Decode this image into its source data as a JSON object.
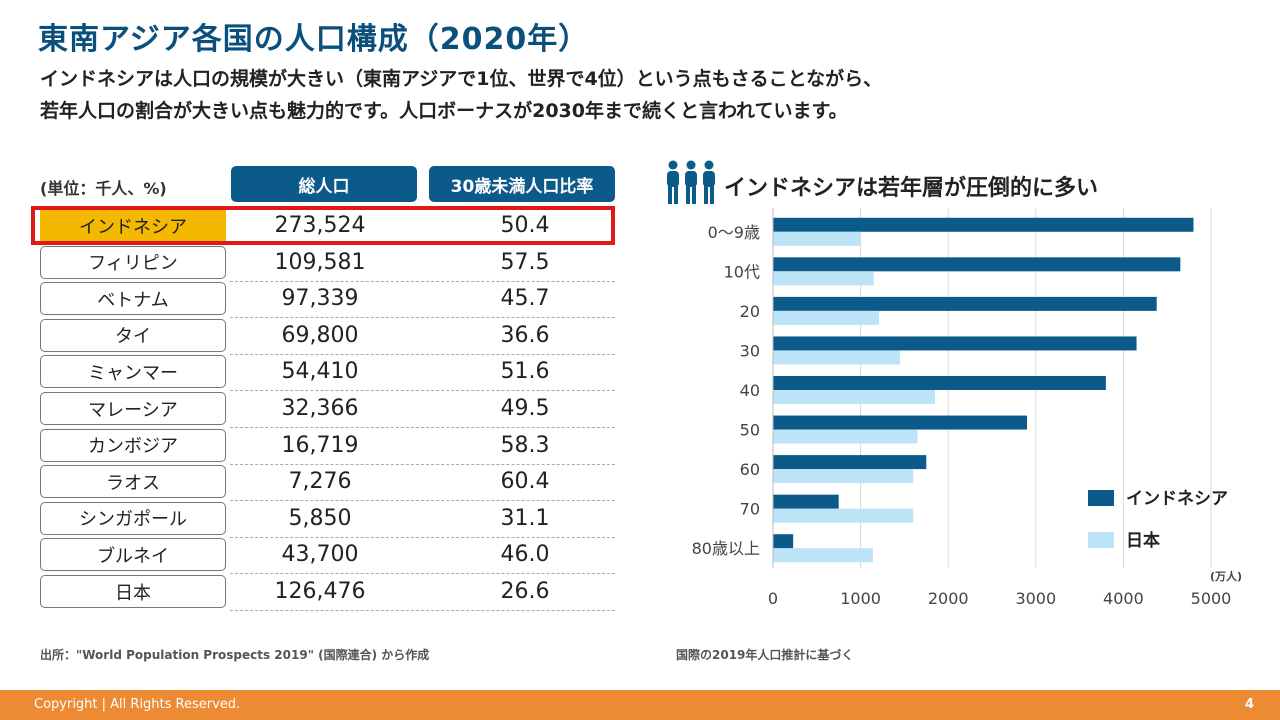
{
  "title": "東南アジア各国の人口構成（2020年）",
  "lead": [
    "インドネシアは人口の規模が大きい（東南アジアで1位、世界で4位）という点もさることながら、",
    "若年人口の割合が大きい点も魅力的です。人口ボーナスが2030年まで続くと言われています。"
  ],
  "table": {
    "unit_label": "(単位：千人、%)",
    "headers": [
      "総人口",
      "30歳未満人口比率"
    ],
    "highlight_color": "#f5b800",
    "rows": [
      {
        "name": "インドネシア",
        "population": "273,524",
        "ratio": "50.4"
      },
      {
        "name": "フィリピン",
        "population": "109,581",
        "ratio": "57.5"
      },
      {
        "name": "ベトナム",
        "population": "97,339",
        "ratio": "45.7"
      },
      {
        "name": "タイ",
        "population": "69,800",
        "ratio": "36.6"
      },
      {
        "name": "ミャンマー",
        "population": "54,410",
        "ratio": "51.6"
      },
      {
        "name": "マレーシア",
        "population": "32,366",
        "ratio": "49.5"
      },
      {
        "name": "カンボジア",
        "population": "16,719",
        "ratio": "58.3"
      },
      {
        "name": "ラオス",
        "population": "7,276",
        "ratio": "60.4"
      },
      {
        "name": "シンガポール",
        "population": "5,850",
        "ratio": "31.1"
      },
      {
        "name": "ブルネイ",
        "population": "43,700",
        "ratio": "46.0"
      },
      {
        "name": "日本",
        "population": "126,476",
        "ratio": "26.6"
      }
    ]
  },
  "source": "出所：\"World Population Prospects 2019\" (国際連合) から作成",
  "note": "国際の2019年人口推計に基づく",
  "chart_icon": "people-icon",
  "chart_data": {
    "type": "bar",
    "orientation": "horizontal",
    "title": "インドネシアは若年層が圧倒的に多い",
    "categories": [
      "0〜9歳",
      "10代",
      "20",
      "30",
      "40",
      "50",
      "60",
      "70",
      "80歳以上"
    ],
    "series": [
      {
        "name": "インドネシア",
        "color": "#0b5a8a",
        "values": [
          4800,
          4650,
          4380,
          4150,
          3800,
          2900,
          1750,
          750,
          230
        ]
      },
      {
        "name": "日本",
        "color": "#bde3f7",
        "values": [
          1000,
          1150,
          1210,
          1450,
          1850,
          1650,
          1600,
          1600,
          1140
        ]
      }
    ],
    "xlim": [
      0,
      5000
    ],
    "xticks": [
      "0",
      "1000",
      "2000",
      "3000",
      "4000",
      "5000"
    ],
    "unit": "(万人)",
    "grid": true,
    "legend": "right"
  },
  "footer": {
    "copyright": "Copyright | All Rights Reserved.",
    "page": "4",
    "color": "#ed8a34"
  }
}
